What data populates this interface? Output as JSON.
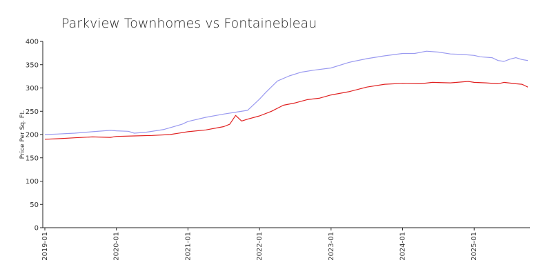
{
  "chart_data": {
    "type": "line",
    "title": "Parkview Townhomes vs Fontainebleau",
    "xlabel": "",
    "ylabel": "Price Per Sq. Ft.",
    "ylim": [
      0,
      400
    ],
    "yticks": [
      0,
      50,
      100,
      150,
      200,
      250,
      300,
      350,
      400
    ],
    "xticks": [
      "2019-01",
      "2020-01",
      "2021-01",
      "2022-01",
      "2023-01",
      "2024-01",
      "2025-01"
    ],
    "xlim": [
      "2019-01",
      "2025-10"
    ],
    "grid": false,
    "legend": "none",
    "series": [
      {
        "color": "#9a9af0",
        "points": [
          [
            "2019-01",
            200
          ],
          [
            "2019-03",
            201
          ],
          [
            "2019-06",
            203
          ],
          [
            "2019-09",
            206
          ],
          [
            "2019-12",
            209
          ],
          [
            "2020-01",
            208
          ],
          [
            "2020-03",
            207
          ],
          [
            "2020-04",
            203
          ],
          [
            "2020-06",
            205
          ],
          [
            "2020-09",
            211
          ],
          [
            "2020-12",
            222
          ],
          [
            "2021-01",
            228
          ],
          [
            "2021-04",
            237
          ],
          [
            "2021-07",
            244
          ],
          [
            "2021-09",
            248
          ],
          [
            "2021-11",
            252
          ],
          [
            "2022-01",
            276
          ],
          [
            "2022-02",
            290
          ],
          [
            "2022-04",
            315
          ],
          [
            "2022-06",
            326
          ],
          [
            "2022-08",
            334
          ],
          [
            "2022-10",
            338
          ],
          [
            "2023-01",
            343
          ],
          [
            "2023-04",
            355
          ],
          [
            "2023-07",
            363
          ],
          [
            "2023-10",
            369
          ],
          [
            "2024-01",
            374
          ],
          [
            "2024-03",
            374
          ],
          [
            "2024-05",
            379
          ],
          [
            "2024-07",
            377
          ],
          [
            "2024-09",
            373
          ],
          [
            "2024-11",
            372
          ],
          [
            "2025-01",
            370
          ],
          [
            "2025-02",
            367
          ],
          [
            "2025-04",
            365
          ],
          [
            "2025-05",
            359
          ],
          [
            "2025-06",
            357
          ],
          [
            "2025-07",
            362
          ],
          [
            "2025-08",
            365
          ],
          [
            "2025-09",
            361
          ],
          [
            "2025-10",
            359
          ]
        ]
      },
      {
        "color": "#e02020",
        "points": [
          [
            "2019-01",
            190
          ],
          [
            "2019-03",
            191
          ],
          [
            "2019-06",
            193
          ],
          [
            "2019-09",
            195
          ],
          [
            "2019-12",
            194
          ],
          [
            "2020-01",
            196
          ],
          [
            "2020-04",
            197
          ],
          [
            "2020-07",
            198
          ],
          [
            "2020-10",
            200
          ],
          [
            "2021-01",
            206
          ],
          [
            "2021-04",
            210
          ],
          [
            "2021-07",
            217
          ],
          [
            "2021-08",
            222
          ],
          [
            "2021-09",
            241
          ],
          [
            "2021-10",
            229
          ],
          [
            "2021-11",
            233
          ],
          [
            "2022-01",
            240
          ],
          [
            "2022-03",
            250
          ],
          [
            "2022-05",
            263
          ],
          [
            "2022-07",
            268
          ],
          [
            "2022-09",
            275
          ],
          [
            "2022-11",
            278
          ],
          [
            "2023-01",
            285
          ],
          [
            "2023-04",
            292
          ],
          [
            "2023-07",
            302
          ],
          [
            "2023-10",
            308
          ],
          [
            "2024-01",
            310
          ],
          [
            "2024-04",
            309
          ],
          [
            "2024-06",
            312
          ],
          [
            "2024-09",
            311
          ],
          [
            "2024-12",
            314
          ],
          [
            "2025-01",
            312
          ],
          [
            "2025-03",
            311
          ],
          [
            "2025-05",
            309
          ],
          [
            "2025-06",
            312
          ],
          [
            "2025-08",
            309
          ],
          [
            "2025-09",
            308
          ],
          [
            "2025-10",
            302
          ]
        ]
      }
    ]
  }
}
